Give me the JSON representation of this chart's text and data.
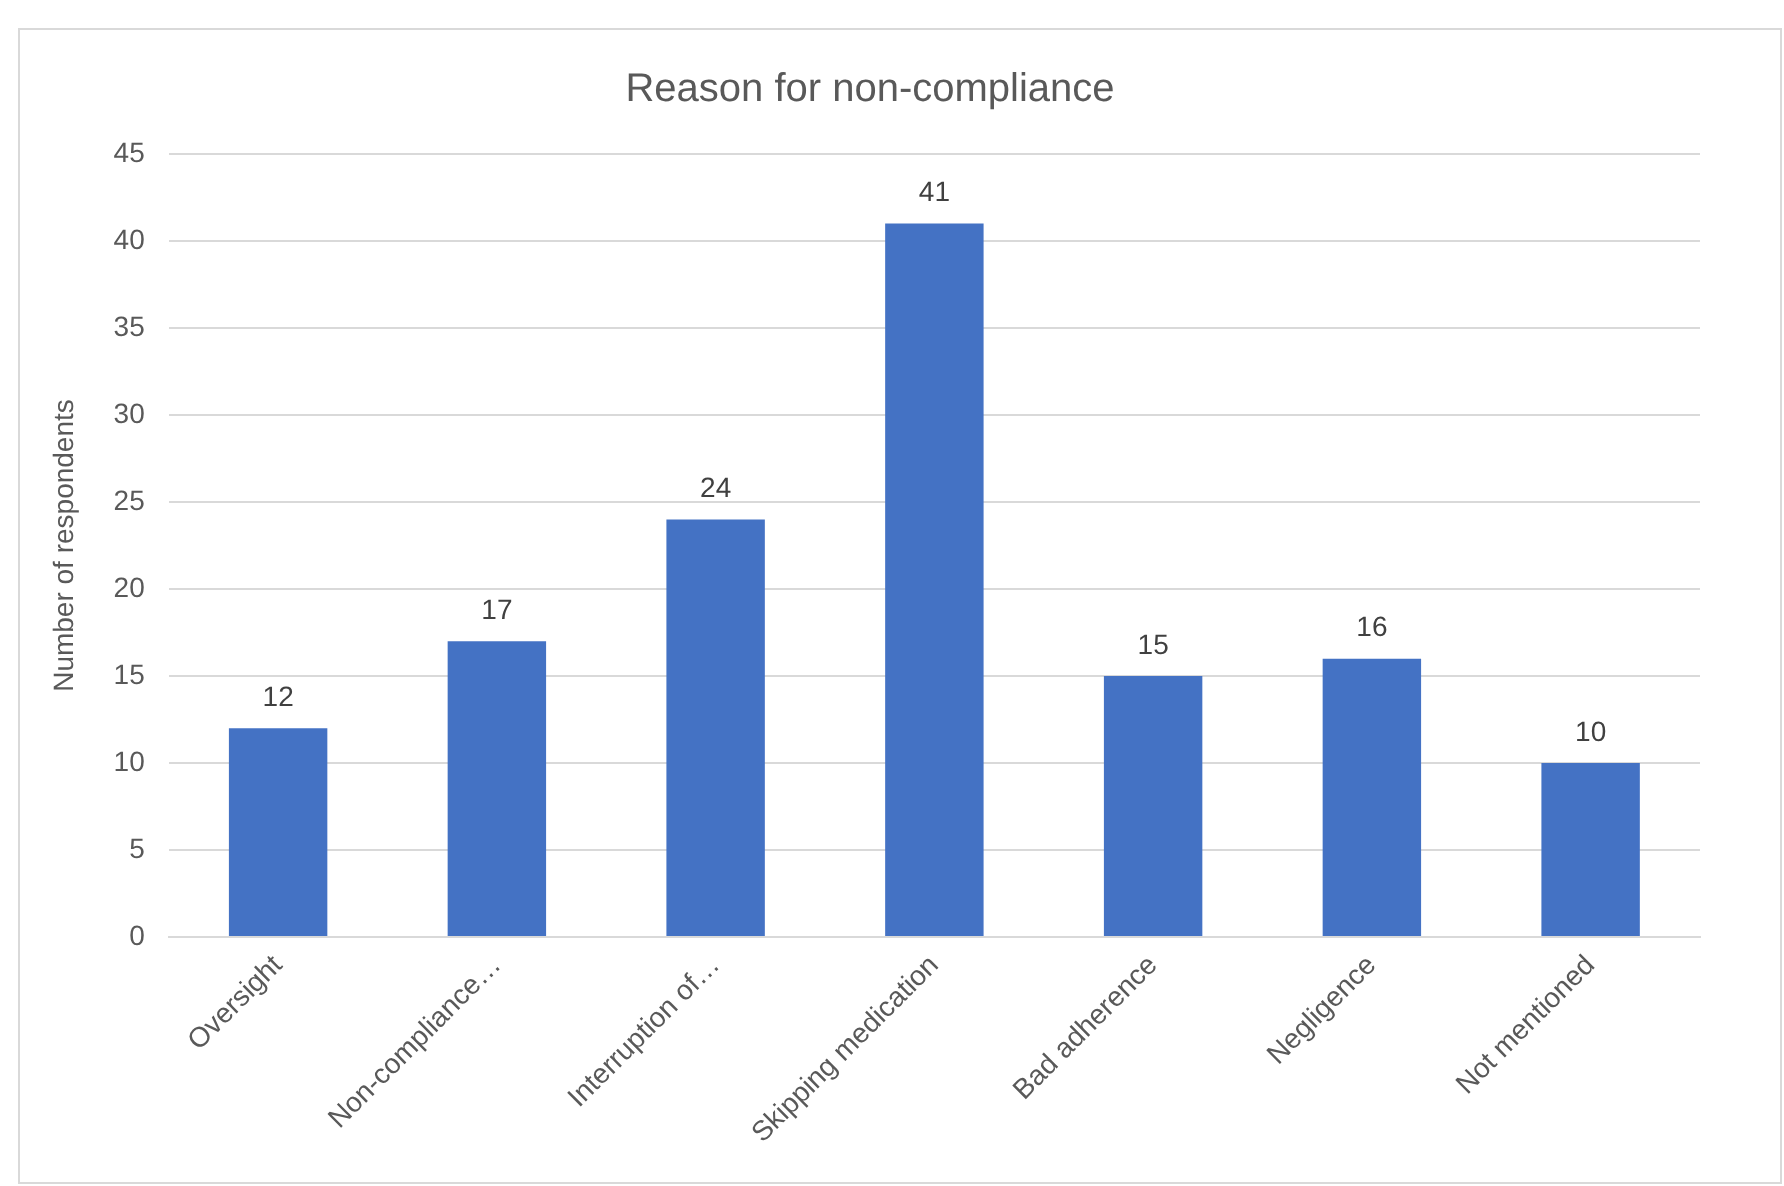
{
  "chart_data": {
    "type": "bar",
    "title": "Reason for non-compliance",
    "ylabel": "Number of respondents",
    "categories": [
      "Oversight",
      "Non-compliance…",
      "Interruption of…",
      "Skipping medication",
      "Bad adherence",
      "Negligence",
      "Not mentioned"
    ],
    "values": [
      12,
      17,
      24,
      41,
      15,
      16,
      10
    ],
    "color": "#4472c4",
    "ylim": [
      0,
      45
    ],
    "yticks": [
      0,
      5,
      10,
      15,
      20,
      25,
      30,
      35,
      40,
      45
    ],
    "grid": "y",
    "data_labels": true
  }
}
